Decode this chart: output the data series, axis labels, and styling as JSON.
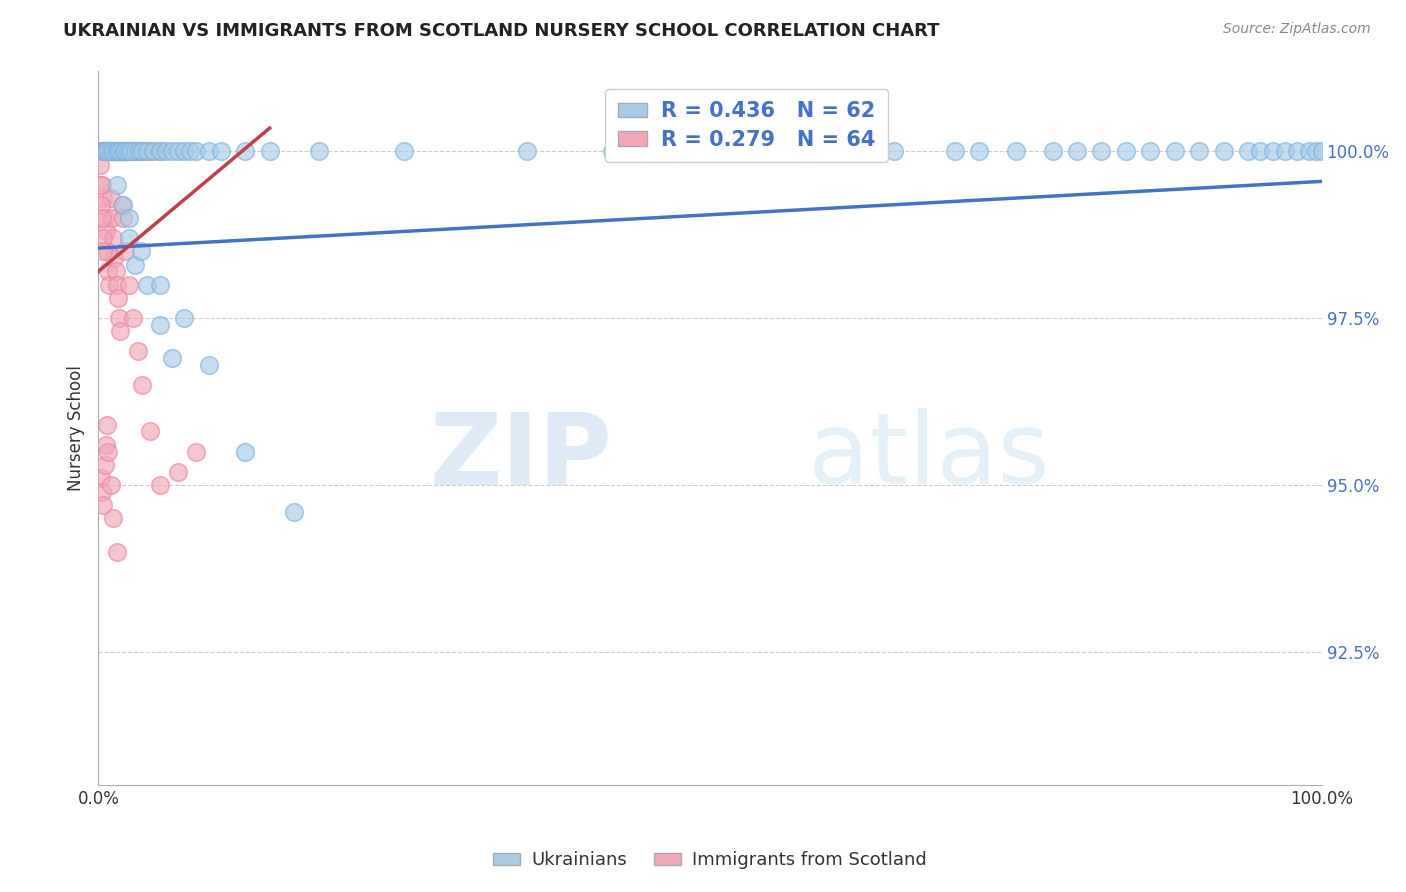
{
  "title": "UKRAINIAN VS IMMIGRANTS FROM SCOTLAND NURSERY SCHOOL CORRELATION CHART",
  "source": "Source: ZipAtlas.com",
  "ylabel": "Nursery School",
  "yticks": [
    92.5,
    95.0,
    97.5,
    100.0
  ],
  "ytick_labels": [
    "92.5%",
    "95.0%",
    "97.5%",
    "100.0%"
  ],
  "xlim": [
    0.0,
    100.0
  ],
  "ylim": [
    90.5,
    101.2
  ],
  "blue_R": 0.436,
  "blue_N": 62,
  "pink_R": 0.279,
  "pink_N": 64,
  "blue_color": "#a8cce8",
  "pink_color": "#f0a8b8",
  "blue_edge_color": "#7eb3e0",
  "pink_edge_color": "#e888a0",
  "blue_line_color": "#4472c4",
  "pink_line_color": "#c0404a",
  "legend_label_blue": "Ukrainians",
  "legend_label_pink": "Immigrants from Scotland",
  "watermark_zip": "ZIP",
  "watermark_atlas": "atlas",
  "blue_line_x0": 0.0,
  "blue_line_y0": 98.55,
  "blue_line_x1": 100.0,
  "blue_line_y1": 99.55,
  "pink_line_x0": 0.0,
  "pink_line_y0": 98.2,
  "pink_line_x1": 14.0,
  "pink_line_y1": 100.35,
  "blue_scatter_x": [
    0.4,
    0.5,
    0.6,
    0.8,
    1.0,
    1.2,
    1.4,
    1.6,
    1.8,
    2.0,
    2.2,
    2.4,
    2.7,
    3.0,
    3.3,
    3.6,
    4.0,
    4.5,
    5.0,
    5.5,
    6.0,
    6.5,
    7.0,
    7.5,
    8.0,
    9.0,
    10.0,
    12.0,
    14.0,
    18.0,
    25.0,
    35.0,
    42.0,
    50.0,
    55.0,
    60.0,
    65.0,
    70.0,
    72.0,
    75.0,
    78.0,
    80.0,
    82.0,
    84.0,
    86.0,
    88.0,
    90.0,
    92.0,
    94.0,
    95.0,
    96.0,
    97.0,
    98.0,
    99.0,
    99.5,
    100.0,
    2.0,
    2.5,
    3.0,
    4.0,
    5.0,
    6.0
  ],
  "blue_scatter_y": [
    100.0,
    100.0,
    100.0,
    100.0,
    100.0,
    100.0,
    100.0,
    100.0,
    100.0,
    100.0,
    100.0,
    100.0,
    100.0,
    100.0,
    100.0,
    100.0,
    100.0,
    100.0,
    100.0,
    100.0,
    100.0,
    100.0,
    100.0,
    100.0,
    100.0,
    100.0,
    100.0,
    100.0,
    100.0,
    100.0,
    100.0,
    100.0,
    100.0,
    100.0,
    100.0,
    100.0,
    100.0,
    100.0,
    100.0,
    100.0,
    100.0,
    100.0,
    100.0,
    100.0,
    100.0,
    100.0,
    100.0,
    100.0,
    100.0,
    100.0,
    100.0,
    100.0,
    100.0,
    100.0,
    100.0,
    100.0,
    99.2,
    98.7,
    98.3,
    98.0,
    97.4,
    96.9
  ],
  "blue_scatter_x2": [
    1.5,
    2.5,
    3.5,
    5.0,
    7.0,
    9.0,
    12.0,
    16.0
  ],
  "blue_scatter_y2": [
    99.5,
    99.0,
    98.5,
    98.0,
    97.5,
    96.8,
    95.5,
    94.6
  ],
  "pink_scatter_x": [
    0.2,
    0.3,
    0.4,
    0.5,
    0.6,
    0.7,
    0.8,
    0.9,
    1.0,
    1.1,
    1.2,
    1.3,
    1.4,
    1.5,
    1.6,
    1.7,
    1.8,
    1.9,
    2.0,
    2.1,
    2.2,
    2.3,
    2.4,
    2.6,
    2.8,
    3.0,
    3.3,
    3.6,
    4.0,
    4.5,
    5.0,
    0.3,
    0.4,
    0.5,
    0.6,
    0.7,
    0.8,
    0.9,
    1.0,
    1.1,
    1.2,
    1.3,
    1.4,
    1.5,
    1.6,
    1.7,
    1.8,
    1.9,
    2.0,
    2.2,
    2.5,
    2.8,
    3.2,
    3.6,
    4.2,
    5.0,
    6.5,
    8.0,
    0.15,
    0.2,
    0.25,
    0.3,
    0.35,
    0.4
  ],
  "pink_scatter_y": [
    100.0,
    100.0,
    100.0,
    100.0,
    100.0,
    100.0,
    100.0,
    100.0,
    100.0,
    100.0,
    100.0,
    100.0,
    100.0,
    100.0,
    100.0,
    100.0,
    100.0,
    100.0,
    100.0,
    100.0,
    100.0,
    100.0,
    100.0,
    100.0,
    100.0,
    100.0,
    100.0,
    100.0,
    100.0,
    100.0,
    100.0,
    99.5,
    99.3,
    99.0,
    98.8,
    98.5,
    98.2,
    98.0,
    99.3,
    99.0,
    98.7,
    98.4,
    98.2,
    98.0,
    97.8,
    97.5,
    97.3,
    99.2,
    99.0,
    98.5,
    98.0,
    97.5,
    97.0,
    96.5,
    95.8,
    95.0,
    95.2,
    95.5,
    99.8,
    99.5,
    99.2,
    99.0,
    98.7,
    98.5
  ],
  "pink_scatter_x2": [
    0.2,
    0.3,
    0.4,
    0.5,
    0.6,
    0.7,
    0.8,
    1.0,
    1.2,
    1.5
  ],
  "pink_scatter_y2": [
    95.1,
    94.9,
    94.7,
    95.3,
    95.6,
    95.9,
    95.5,
    95.0,
    94.5,
    94.0
  ]
}
